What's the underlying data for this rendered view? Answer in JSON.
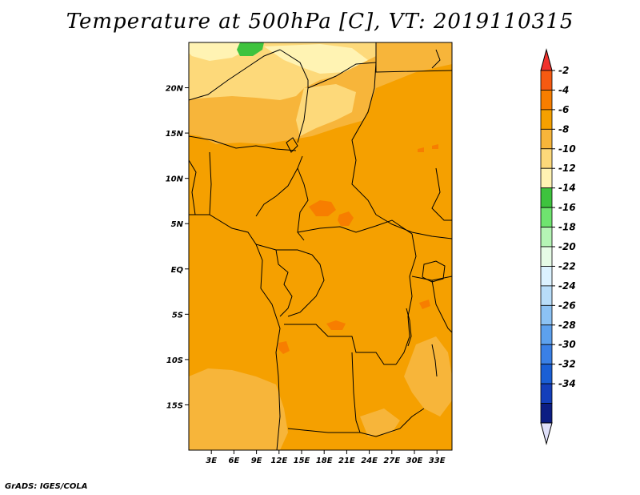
{
  "title": "Temperature at 500hPa [C], VT: 2019110315",
  "credit": "GrADS: IGES/COLA",
  "chart_data": {
    "type": "heatmap",
    "title": "Temperature at 500hPa [C], VT: 2019110315",
    "variable": "Temperature at 500hPa",
    "units": "C",
    "valid_time": "2019110315",
    "x_axis": {
      "range": [
        0,
        35
      ],
      "ticks": [
        3,
        6,
        9,
        12,
        15,
        18,
        21,
        24,
        27,
        30,
        33
      ],
      "tick_labels": [
        "3E",
        "6E",
        "9E",
        "12E",
        "15E",
        "18E",
        "21E",
        "24E",
        "27E",
        "30E",
        "33E"
      ]
    },
    "y_axis": {
      "range": [
        -20,
        25
      ],
      "ticks": [
        20,
        15,
        10,
        5,
        0,
        -5,
        -10,
        -15
      ],
      "tick_labels": [
        "20N",
        "15N",
        "10N",
        "5N",
        "EQ",
        "5S",
        "10S",
        "15S"
      ]
    },
    "colorbar": {
      "levels": [
        -2,
        -4,
        -6,
        -8,
        -10,
        -12,
        -14,
        -16,
        -18,
        -20,
        -22,
        -24,
        -26,
        -28,
        -30,
        -32,
        -34
      ],
      "labels": [
        "-2",
        "-4",
        "-6",
        "-8",
        "-10",
        "-12",
        "-14",
        "-16",
        "-18",
        "-20",
        "-22",
        "-24",
        "-26",
        "-28",
        "-30",
        "-32",
        "-34"
      ],
      "colors": [
        "#f65a12",
        "#f77e00",
        "#f5a000",
        "#f7b53a",
        "#fdd97a",
        "#fff3b3",
        "#3ec33e",
        "#6fe46f",
        "#b5f4b5",
        "#e6fbe6",
        "#dcf2ff",
        "#b8ddf9",
        "#8cc2f4",
        "#5da1ee",
        "#3a80e6",
        "#1a5fd6",
        "#143fbb",
        "#0c1d83"
      ],
      "top_arrow_color": "#f0322d",
      "bottom_arrow_color": "#dfe0fa"
    },
    "fields": [
      {
        "band": "-4 to -2",
        "color": "#f77e00",
        "areas": [
          "Sudan–CAR border near 7N 22E",
          "Chad–Sudan near 13N 27E",
          "Congo basin near 8S 18E",
          "coast near 9S 13E",
          "Lake Victoria region near 3S 31E"
        ]
      },
      {
        "band": "-6 to -4",
        "color": "#f5a000",
        "areas": [
          "most of domain between 15N and 15S"
        ]
      },
      {
        "band": "-8 to -6",
        "color": "#f7b53a",
        "areas": [
          "Sahel near 15-20N",
          "southern Africa south of 14S",
          "east African highlands near 9-14S 31E"
        ]
      },
      {
        "band": "-10 to -8",
        "color": "#fdd97a",
        "areas": [
          "Sahara north of 20N"
        ]
      },
      {
        "band": "-12 to -10",
        "color": "#fff3b3",
        "areas": [
          "northern Niger/Chad near 23N 13E"
        ]
      },
      {
        "band": "-14 to -12",
        "color": "#3ec33e",
        "areas": [
          "near 25N 7E"
        ]
      }
    ]
  }
}
